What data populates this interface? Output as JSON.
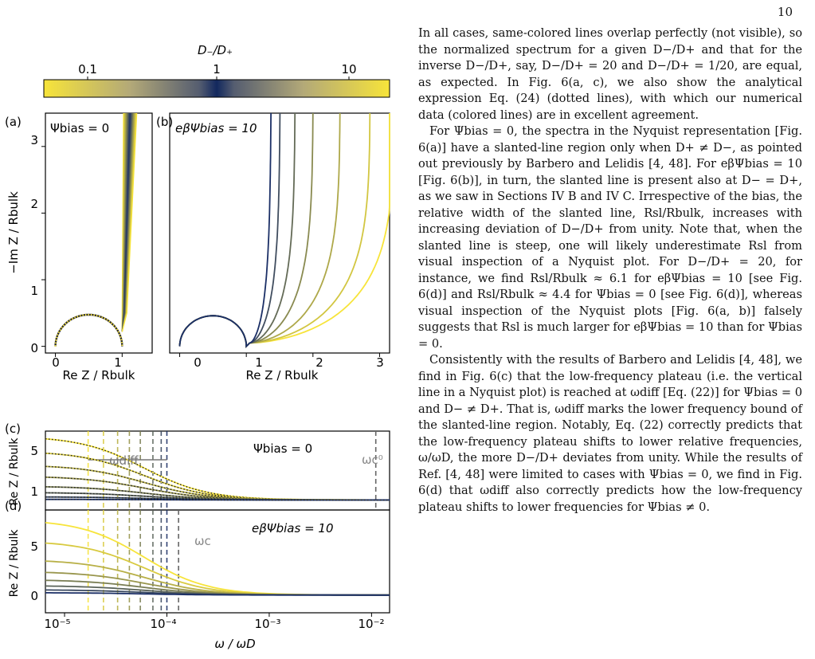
{
  "page_number": "10",
  "figure": {
    "colorbar": {
      "title": "D₋/D₊",
      "tick_labels": [
        "0.1",
        "1",
        "10"
      ]
    },
    "panels": {
      "a": {
        "letter": "(a)",
        "annotation": "Ψbias = 0",
        "ylabel": "−Im Z / Rbulk",
        "xlabel": "Re Z / Rbulk",
        "xticks": [
          "0",
          "1"
        ],
        "yticks": [
          "0",
          "1",
          "2",
          "3"
        ]
      },
      "b": {
        "letter": "(b)",
        "annotation": "eβΨbias = 10",
        "xlabel": "Re Z / Rbulk",
        "xticks": [
          "0",
          "1",
          "2",
          "3"
        ]
      },
      "c": {
        "letter": "(c)",
        "annotation": "Ψbias = 0",
        "ylabel": "Re Z / Rbulk",
        "yticks": [
          "1",
          "5"
        ],
        "omega_diff_label": "ωdiff",
        "omega_c0_label": "ωc⁰"
      },
      "d": {
        "letter": "(d)",
        "annotation": "eβΨbias = 10",
        "ylabel": "Re Z / Rbulk",
        "yticks": [
          "0",
          "5"
        ],
        "omega_c_label": "ωc",
        "xlabel": "ω / ωD",
        "xticks": [
          "10⁻⁵",
          "10⁻⁴",
          "10⁻³",
          "10⁻²"
        ]
      }
    }
  },
  "colors": {
    "yellow": "#f7e43a",
    "navy": "#1b2f66",
    "grey": "#8a8a84"
  },
  "chart_data": [
    {
      "panel": "a",
      "type": "line",
      "xlabel": "Re Z/Rbulk",
      "ylabel": "−Im Z/Rbulk",
      "xlim": [
        -0.15,
        1.45
      ],
      "ylim": [
        -0.1,
        3.5
      ],
      "note": "Nyquist plot: semicircle from 0 to 1, then near-vertical line at Re Z ≈ 1 for all D−/D+"
    },
    {
      "panel": "b",
      "type": "line",
      "xlabel": "Re Z/Rbulk",
      "xlim": [
        -0.15,
        3.15
      ],
      "ylim": [
        -0.1,
        3.5
      ],
      "series_ratio_D": [
        20,
        10,
        5,
        3,
        2,
        1.4,
        1
      ],
      "series_vertical_re_z": [
        3.4,
        3.0,
        2.5,
        2.05,
        1.75,
        1.5,
        1.35
      ]
    },
    {
      "panel": "c",
      "type": "line",
      "xscale": "log",
      "xlim": [
        6.5e-06,
        0.015
      ],
      "ylim": [
        0.2,
        6.5
      ],
      "x_log10": -5,
      "series_plateau": [
        6.1,
        4.9,
        3.8,
        2.9,
        2.1,
        1.6,
        1.25,
        1.05
      ],
      "omega_diff_markers": [
        1.7e-05,
        2.4e-05,
        3.3e-05,
        4.3e-05,
        5.5e-05,
        7.3e-05,
        8.8e-05,
        0.0001
      ],
      "omega_c0": 0.011
    },
    {
      "panel": "d",
      "type": "line",
      "xscale": "log",
      "xlim": [
        6.5e-06,
        0.015
      ],
      "ylim": [
        -0.5,
        8.2
      ],
      "series_plateau": [
        7.4,
        5.6,
        4.0,
        3.0,
        2.3,
        1.8,
        1.45,
        1.2
      ],
      "omega_c": 0.00013
    }
  ],
  "text": {
    "p1": "In all cases, same-colored lines overlap perfectly (not visible), so the normalized spectrum for a given D−/D+ and that for the inverse D−/D+, say, D−/D+ = 20 and D−/D+ = 1/20, are equal, as expected. In Fig. 6(a, c), we also show the analytical expression Eq. (24) (dotted lines), with which our numerical data (colored lines) are in excellent agreement.",
    "p2": "For Ψbias = 0, the spectra in the Nyquist representation [Fig. 6(a)] have a slanted-line region only when D+ ≠ D−, as pointed out previously by Barbero and Lelidis [4, 48]. For eβΨbias = 10 [Fig. 6(b)], in turn, the slanted line is present also at D− = D+, as we saw in Sections IV B and IV C. Irrespective of the bias, the relative width of the slanted line, Rsl/Rbulk, increases with increasing deviation of D−/D+ from unity. Note that, when the slanted line is steep, one will likely underestimate Rsl from visual inspection of a Nyquist plot. For D−/D+ = 20, for instance, we find Rsl/Rbulk ≈ 6.1 for eβΨbias = 10 [see Fig. 6(d)] and Rsl/Rbulk ≈ 4.4 for Ψbias = 0 [see Fig. 6(d)], whereas visual inspection of the Nyquist plots [Fig. 6(a, b)] falsely suggests that Rsl is much larger for eβΨbias = 10 than for Ψbias = 0.",
    "p3": "Consistently with the results of Barbero and Lelidis [4, 48], we find in Fig. 6(c) that the low-frequency plateau (i.e. the vertical line in a Nyquist plot) is reached at ωdiff [Eq. (22)] for Ψbias = 0 and D− ≠ D+. That is, ωdiff marks the lower frequency bound of the slanted-line region. Notably, Eq. (22) correctly predicts that the low-frequency plateau shifts to lower relative frequencies, ω/ωD, the more D−/D+ deviates from unity. While the results of Ref. [4, 48] were limited to cases with Ψbias = 0, we find in Fig. 6(d) that ωdiff also correctly predicts how the low-frequency plateau shifts to lower frequencies for Ψbias ≠ 0."
  }
}
